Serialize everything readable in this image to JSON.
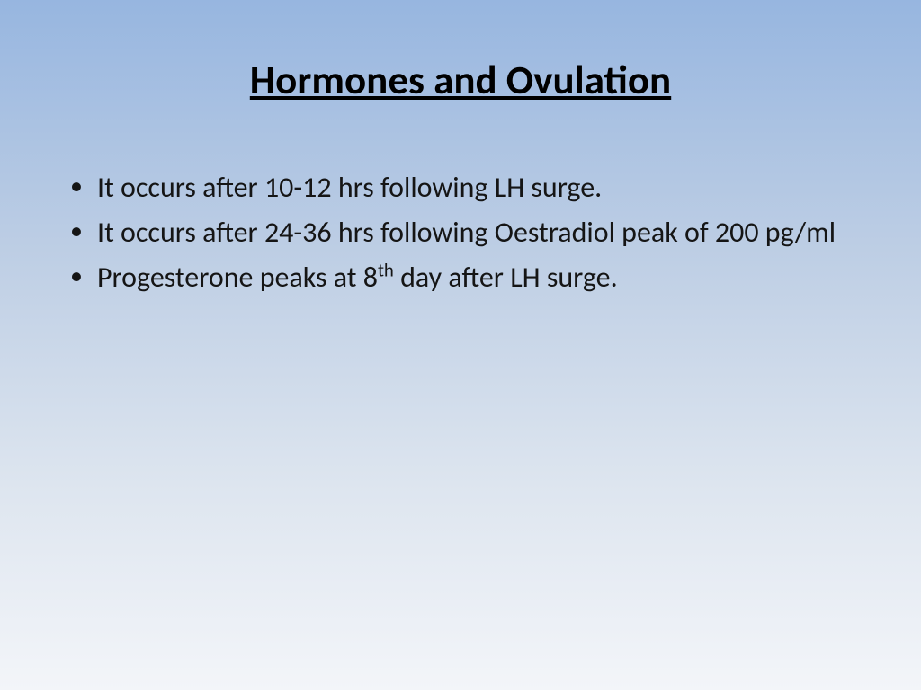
{
  "slide": {
    "title": "Hormones and Ovulation",
    "bullets": [
      {
        "text": "It occurs after 10-12 hrs following LH surge."
      },
      {
        "text": "It occurs after 24-36 hrs following Oestradiol peak of 200 pg/ml"
      },
      {
        "pre": "Progesterone peaks at 8",
        "sup": "th",
        "post": " day after LH surge."
      }
    ],
    "styling": {
      "background_gradient_top": "#97b6e0",
      "background_gradient_bottom": "#f3f5f9",
      "title_fontsize": 45,
      "title_weight": 700,
      "title_underline": true,
      "body_fontsize": 32,
      "text_color": "#000000",
      "font_family": "Calibri"
    }
  }
}
